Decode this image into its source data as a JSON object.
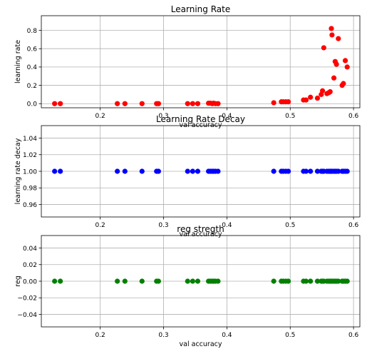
{
  "figure": {
    "background": "#ffffff",
    "xlabel": "val accuracy",
    "xlim": [
      0.107,
      0.61
    ],
    "xticks": [
      0.2,
      0.3,
      0.4,
      0.5,
      0.6
    ],
    "x": [
      0.128,
      0.137,
      0.227,
      0.239,
      0.266,
      0.289,
      0.292,
      0.338,
      0.346,
      0.354,
      0.371,
      0.374,
      0.377,
      0.379,
      0.382,
      0.386,
      0.474,
      0.486,
      0.489,
      0.493,
      0.497,
      0.521,
      0.525,
      0.532,
      0.543,
      0.549,
      0.551,
      0.553,
      0.558,
      0.561,
      0.563,
      0.565,
      0.566,
      0.569,
      0.571,
      0.573,
      0.576,
      0.582,
      0.584,
      0.587,
      0.59
    ]
  },
  "chart_data": [
    {
      "type": "scatter",
      "title": "Learning Rate",
      "xlabel": "val accuracy",
      "ylabel": "learning rate",
      "color": "#ff0000",
      "ylim": [
        -0.045,
        0.96
      ],
      "yticks": [
        0.0,
        0.2,
        0.4,
        0.6,
        0.8
      ],
      "yticklabels": [
        "0.0",
        "0.2",
        "0.4",
        "0.6",
        "0.8"
      ],
      "grid": true,
      "y": [
        0.0,
        0.0,
        0.0,
        0.0,
        0.0,
        0.0,
        0.0,
        0.0,
        0.0,
        0.0,
        0.005,
        0.005,
        0.0,
        0.005,
        0.0,
        0.0,
        0.01,
        0.02,
        0.02,
        0.02,
        0.02,
        0.04,
        0.04,
        0.07,
        0.06,
        0.1,
        0.14,
        0.61,
        0.11,
        0.12,
        0.13,
        0.82,
        0.75,
        0.28,
        0.46,
        0.43,
        0.71,
        0.2,
        0.22,
        0.47,
        0.4
      ]
    },
    {
      "type": "scatter",
      "title": "Learning Rate Decay",
      "xlabel": "val accuracy",
      "ylabel": "learning rate decay",
      "color": "#0000ff",
      "ylim": [
        0.945,
        1.055
      ],
      "yticks": [
        0.96,
        0.98,
        1.0,
        1.02,
        1.04
      ],
      "yticklabels": [
        "0.96",
        "0.98",
        "1.00",
        "1.02",
        "1.04"
      ],
      "grid": true,
      "y": [
        1.0,
        1.0,
        1.0,
        1.0,
        1.0,
        1.0,
        1.0,
        1.0,
        1.0,
        1.0,
        1.0,
        1.0,
        1.0,
        1.0,
        1.0,
        1.0,
        1.0,
        1.0,
        1.0,
        1.0,
        1.0,
        1.0,
        1.0,
        1.0,
        1.0,
        1.0,
        1.0,
        1.0,
        1.0,
        1.0,
        1.0,
        1.0,
        1.0,
        1.0,
        1.0,
        1.0,
        1.0,
        1.0,
        1.0,
        1.0,
        1.0
      ]
    },
    {
      "type": "scatter",
      "title": "reg stregth",
      "xlabel": "val accuracy",
      "ylabel": "reg",
      "color": "#008000",
      "ylim": [
        -0.055,
        0.055
      ],
      "yticks": [
        -0.04,
        -0.02,
        0.0,
        0.02,
        0.04
      ],
      "yticklabels": [
        "−0.04",
        "−0.02",
        "0.00",
        "0.02",
        "0.04"
      ],
      "grid": true,
      "y": [
        0.0,
        0.0,
        0.0,
        0.0,
        0.0,
        0.0,
        0.0,
        0.0,
        0.0,
        0.0,
        0.0,
        0.0,
        0.0,
        0.0,
        0.0,
        0.0,
        0.0,
        0.0,
        0.0,
        0.0,
        0.0,
        0.0,
        0.0,
        0.0,
        0.0,
        0.0,
        0.0,
        0.0,
        0.0,
        0.0,
        0.0,
        0.0,
        0.0,
        0.0,
        0.0,
        0.0,
        0.0,
        0.0,
        0.0,
        0.0,
        0.0
      ]
    }
  ]
}
